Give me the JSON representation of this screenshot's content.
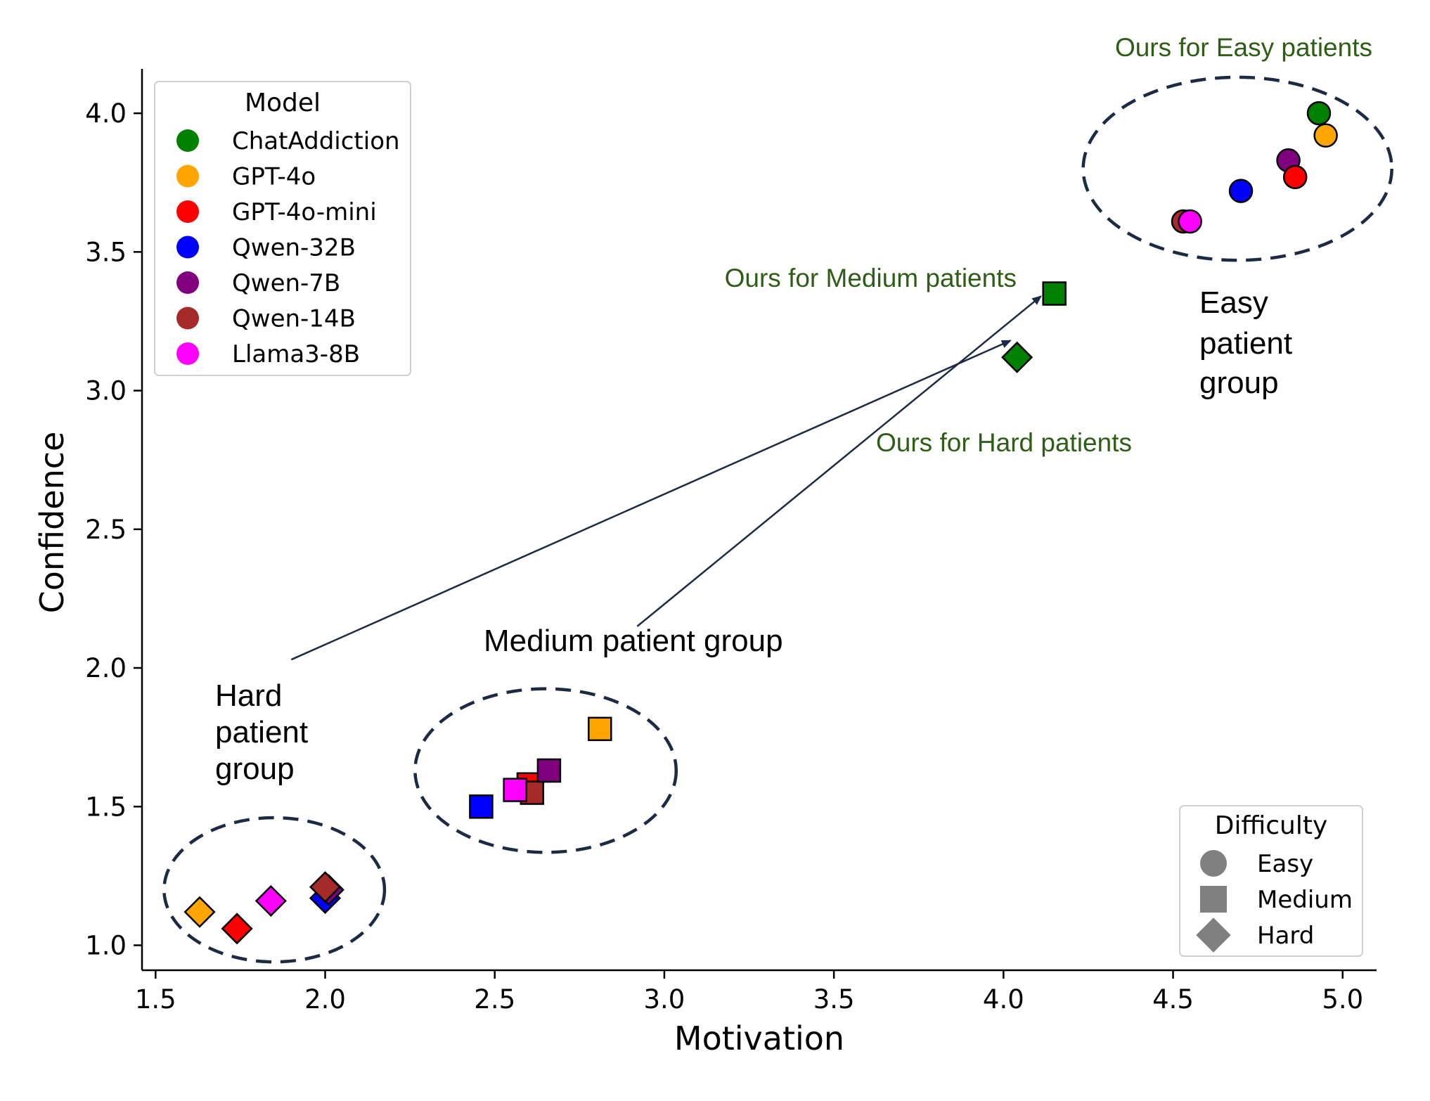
{
  "chart_data": {
    "type": "scatter",
    "xlabel": "Motivation",
    "ylabel": "Confidence",
    "xlim": [
      1.46,
      5.1
    ],
    "ylim": [
      0.91,
      4.16
    ],
    "xticks": [
      "1.5",
      "2.0",
      "2.5",
      "3.0",
      "3.5",
      "4.0",
      "4.5",
      "5.0"
    ],
    "yticks": [
      "1.0",
      "1.5",
      "2.0",
      "2.5",
      "3.0",
      "3.5",
      "4.0"
    ],
    "models": [
      {
        "name": "ChatAddiction",
        "color": "#008000"
      },
      {
        "name": "GPT-4o",
        "color": "#FFA500"
      },
      {
        "name": "GPT-4o-mini",
        "color": "#FF0000"
      },
      {
        "name": "Qwen-32B",
        "color": "#0000FF"
      },
      {
        "name": "Qwen-7B",
        "color": "#800080"
      },
      {
        "name": "Qwen-14B",
        "color": "#A52A2A"
      },
      {
        "name": "Llama3-8B",
        "color": "#FF00FF"
      }
    ],
    "difficulties": [
      {
        "name": "Easy",
        "marker": "circle"
      },
      {
        "name": "Medium",
        "marker": "square"
      },
      {
        "name": "Hard",
        "marker": "diamond"
      }
    ],
    "legend_model_title": "Model",
    "legend_difficulty_title": "Difficulty",
    "legend_model_position": "top-left",
    "legend_difficulty_position": "bottom-right",
    "points": [
      {
        "model": "ChatAddiction",
        "difficulty": "Easy",
        "x": 4.93,
        "y": 4.0
      },
      {
        "model": "GPT-4o",
        "difficulty": "Easy",
        "x": 4.95,
        "y": 3.92
      },
      {
        "model": "Qwen-7B",
        "difficulty": "Easy",
        "x": 4.84,
        "y": 3.83
      },
      {
        "model": "GPT-4o-mini",
        "difficulty": "Easy",
        "x": 4.86,
        "y": 3.77
      },
      {
        "model": "Qwen-32B",
        "difficulty": "Easy",
        "x": 4.7,
        "y": 3.72
      },
      {
        "model": "Qwen-14B",
        "difficulty": "Easy",
        "x": 4.53,
        "y": 3.61
      },
      {
        "model": "Llama3-8B",
        "difficulty": "Easy",
        "x": 4.55,
        "y": 3.61
      },
      {
        "model": "ChatAddiction",
        "difficulty": "Medium",
        "x": 4.15,
        "y": 3.35
      },
      {
        "model": "GPT-4o",
        "difficulty": "Medium",
        "x": 2.81,
        "y": 1.78
      },
      {
        "model": "GPT-4o-mini",
        "difficulty": "Medium",
        "x": 2.6,
        "y": 1.58
      },
      {
        "model": "Qwen-14B",
        "difficulty": "Medium",
        "x": 2.61,
        "y": 1.55
      },
      {
        "model": "Qwen-7B",
        "difficulty": "Medium",
        "x": 2.66,
        "y": 1.63
      },
      {
        "model": "Llama3-8B",
        "difficulty": "Medium",
        "x": 2.56,
        "y": 1.56
      },
      {
        "model": "Qwen-32B",
        "difficulty": "Medium",
        "x": 2.46,
        "y": 1.5
      },
      {
        "model": "ChatAddiction",
        "difficulty": "Hard",
        "x": 4.04,
        "y": 3.12
      },
      {
        "model": "GPT-4o",
        "difficulty": "Hard",
        "x": 1.63,
        "y": 1.12
      },
      {
        "model": "GPT-4o-mini",
        "difficulty": "Hard",
        "x": 1.74,
        "y": 1.06
      },
      {
        "model": "Llama3-8B",
        "difficulty": "Hard",
        "x": 1.84,
        "y": 1.16
      },
      {
        "model": "Qwen-32B",
        "difficulty": "Hard",
        "x": 2.0,
        "y": 1.17
      },
      {
        "model": "Qwen-7B",
        "difficulty": "Hard",
        "x": 2.01,
        "y": 1.2
      },
      {
        "model": "Qwen-14B",
        "difficulty": "Hard",
        "x": 2.0,
        "y": 1.21
      }
    ],
    "annotations": {
      "easy_ours": "Ours for Easy patients",
      "medium_ours": "Ours for Medium patients",
      "hard_ours": "Ours for Hard patients",
      "easy_group": [
        "Easy",
        "patient",
        "group"
      ],
      "medium_group": "Medium patient group",
      "hard_group": [
        "Hard",
        "patient",
        "group"
      ]
    },
    "group_clusters": [
      {
        "name": "easy",
        "cx": 4.69,
        "cy": 3.8,
        "rx": 0.455,
        "ry": 0.33
      },
      {
        "name": "medium",
        "cx": 2.65,
        "cy": 1.63,
        "rx": 0.385,
        "ry": 0.295
      },
      {
        "name": "hard",
        "cx": 1.85,
        "cy": 1.2,
        "rx": 0.325,
        "ry": 0.26
      }
    ],
    "arrows": [
      {
        "name": "hard-to-ours",
        "from": [
          1.9,
          2.03
        ],
        "to": [
          4.02,
          3.18
        ]
      },
      {
        "name": "medium-to-ours",
        "from": [
          2.92,
          2.15
        ],
        "to": [
          4.11,
          3.34
        ]
      }
    ]
  }
}
